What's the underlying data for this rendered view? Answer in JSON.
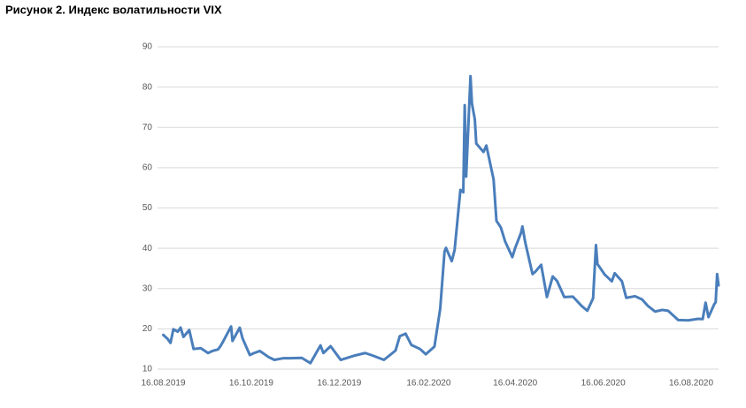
{
  "chart_data": {
    "type": "line",
    "title": "Рисунок 2. Индекс волатильности VIX",
    "x": [
      "16.08.2019",
      "19.08.2019",
      "21.08.2019",
      "23.08.2019",
      "26.08.2019",
      "28.08.2019",
      "30.08.2019",
      "03.09.2019",
      "06.09.2019",
      "11.09.2019",
      "16.09.2019",
      "19.09.2019",
      "23.09.2019",
      "25.09.2019",
      "27.09.2019",
      "02.10.2019",
      "03.10.2019",
      "08.10.2019",
      "10.10.2019",
      "15.10.2019",
      "18.10.2019",
      "22.10.2019",
      "28.10.2019",
      "01.11.2019",
      "07.11.2019",
      "12.11.2019",
      "20.11.2019",
      "26.11.2019",
      "03.12.2019",
      "05.12.2019",
      "10.12.2019",
      "17.12.2019",
      "27.12.2019",
      "03.01.2020",
      "08.01.2020",
      "16.01.2020",
      "24.01.2020",
      "27.01.2020",
      "31.01.2020",
      "04.02.2020",
      "10.02.2020",
      "14.02.2020",
      "20.02.2020",
      "24.02.2020",
      "27.02.2020",
      "28.02.2020",
      "03.03.2020",
      "05.03.2020",
      "09.03.2020",
      "11.03.2020",
      "12.03.2020",
      "13.03.2020",
      "16.03.2020",
      "17.03.2020",
      "19.03.2020",
      "20.03.2020",
      "25.03.2020",
      "27.03.2020",
      "01.04.2020",
      "03.04.2020",
      "06.04.2020",
      "09.04.2020",
      "14.04.2020",
      "16.04.2020",
      "20.04.2020",
      "21.04.2020",
      "23.04.2020",
      "28.04.2020",
      "30.04.2020",
      "04.05.2020",
      "08.05.2020",
      "12.05.2020",
      "15.05.2020",
      "20.05.2020",
      "26.05.2020",
      "01.06.2020",
      "05.06.2020",
      "09.06.2020",
      "11.06.2020",
      "12.06.2020",
      "17.06.2020",
      "22.06.2020",
      "24.06.2020",
      "29.06.2020",
      "02.07.2020",
      "08.07.2020",
      "13.07.2020",
      "17.07.2020",
      "22.07.2020",
      "27.07.2020",
      "31.07.2020",
      "07.08.2020",
      "14.08.2020",
      "21.08.2020",
      "24.08.2020",
      "26.08.2020",
      "28.08.2020",
      "01.09.2020",
      "02.09.2020",
      "03.09.2020",
      "04.09.2020"
    ],
    "series": [
      {
        "name": "VIX",
        "color": "#4a7ebb",
        "values": [
          18.5,
          17.5,
          16.5,
          19.9,
          19.3,
          20.3,
          18.0,
          19.7,
          15.0,
          15.2,
          14.0,
          14.5,
          14.9,
          15.9,
          17.2,
          20.6,
          17.0,
          20.3,
          17.6,
          13.5,
          14.0,
          14.5,
          13.0,
          12.3,
          12.7,
          12.7,
          12.8,
          11.5,
          15.9,
          14.0,
          15.7,
          12.3,
          13.4,
          14.0,
          13.4,
          12.3,
          14.6,
          18.2,
          18.8,
          16.0,
          15.0,
          13.7,
          15.6,
          25.0,
          39.2,
          40.1,
          36.8,
          39.6,
          54.5,
          53.9,
          75.5,
          57.8,
          82.7,
          75.9,
          72.0,
          66.0,
          63.9,
          65.5,
          57.1,
          46.8,
          45.2,
          41.7,
          37.8,
          40.1,
          43.8,
          45.4,
          41.4,
          33.6,
          34.2,
          35.9,
          27.9,
          33.0,
          31.9,
          27.9,
          28.0,
          25.7,
          24.5,
          27.6,
          40.8,
          36.1,
          33.5,
          31.8,
          33.8,
          31.8,
          27.7,
          28.1,
          27.3,
          25.7,
          24.3,
          24.7,
          24.5,
          22.2,
          22.1,
          22.5,
          22.4,
          26.5,
          22.9,
          26.1,
          26.6,
          33.6,
          30.8
        ]
      }
    ],
    "xlim": [
      "12.08.2019",
      "04.09.2020"
    ],
    "xticks": [
      "16.08.2019",
      "16.10.2019",
      "16.12.2019",
      "16.02.2020",
      "16.04.2020",
      "16.06.2020",
      "16.08.2020"
    ],
    "ylim": [
      10,
      90
    ],
    "yticks": [
      10,
      20,
      30,
      40,
      50,
      60,
      70,
      80,
      90
    ],
    "grid": true
  }
}
